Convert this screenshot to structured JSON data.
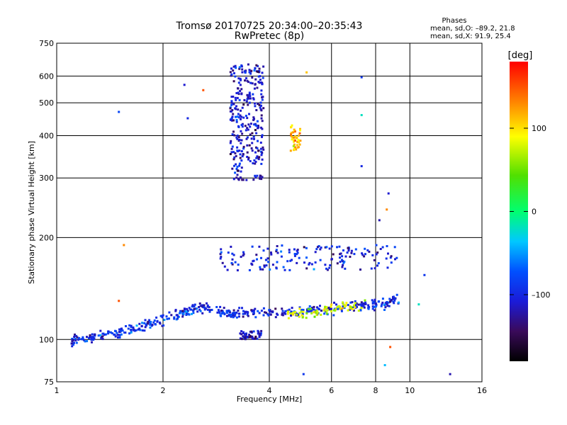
{
  "chart_data": {
    "type": "scatter",
    "title": "Tromsø 20170725 20:34:00–20:35:43",
    "subtitle": "RwPretec (8p)",
    "xlabel": "Frequency [MHz]",
    "ylabel": "Stationary phase Virtual Height [km]",
    "x_scale": "log",
    "y_scale": "log",
    "xlim": [
      1,
      16
    ],
    "ylim": [
      75,
      750
    ],
    "x_ticks": [
      1,
      2,
      4,
      6,
      8,
      10,
      16
    ],
    "x_tick_labels": [
      "1",
      "2",
      "4",
      "6",
      "8",
      "10",
      "16"
    ],
    "y_ticks": [
      75,
      100,
      200,
      300,
      400,
      500,
      600,
      750
    ],
    "y_tick_labels": [
      "75",
      "100",
      "200",
      "300",
      "400",
      "500",
      "600",
      "750"
    ],
    "grid": true,
    "stats": {
      "heading": "Phases",
      "line_o": "mean, sd,O: –89.2, 21.8",
      "line_x": "mean, sd,X:  91.9, 25.4"
    },
    "colorbar": {
      "label": "[deg]",
      "ticks": [
        100,
        0,
        -100
      ],
      "tick_labels": [
        "100",
        "0",
        "–100"
      ],
      "range": [
        -180,
        180
      ]
    },
    "groups": [
      {
        "name": "low-band trace",
        "x_range": [
          1.1,
          3.3
        ],
        "y_trend": [
          [
            1.1,
            99
          ],
          [
            1.5,
            105
          ],
          [
            2.0,
            115
          ],
          [
            2.6,
            125
          ],
          [
            3.2,
            118
          ]
        ],
        "phase": -95,
        "count": 260
      },
      {
        "name": "o-trace lower",
        "x_range": [
          3.0,
          9.3
        ],
        "y_trend": [
          [
            3.0,
            119
          ],
          [
            4.0,
            120
          ],
          [
            5.0,
            121
          ],
          [
            6.5,
            124
          ],
          [
            8.5,
            128
          ],
          [
            9.2,
            132
          ]
        ],
        "phase": -100,
        "count": 220
      },
      {
        "name": "x-trace lower",
        "x_range": [
          4.4,
          7.5
        ],
        "y_trend": [
          [
            4.5,
            118
          ],
          [
            5.5,
            121
          ],
          [
            6.5,
            124
          ],
          [
            7.4,
            127
          ]
        ],
        "phase": 80,
        "count": 70
      },
      {
        "name": "upper layer",
        "x_range": [
          2.9,
          9.2
        ],
        "y_range": [
          160,
          190
        ],
        "phase": -100,
        "count": 160
      },
      {
        "name": "spread-F column",
        "x_range": [
          3.1,
          3.85
        ],
        "y_range": [
          295,
          650
        ],
        "phase": -110,
        "count": 300
      },
      {
        "name": "yellow cluster",
        "x_range": [
          4.6,
          4.9
        ],
        "y_range": [
          360,
          430
        ],
        "phase": 110,
        "count": 40
      },
      {
        "name": "low echoes",
        "x_range": [
          3.3,
          3.8
        ],
        "y_range": [
          100,
          106
        ],
        "phase": -115,
        "count": 50
      }
    ],
    "isolated_points": [
      {
        "x": 1.5,
        "y": 470,
        "phase": -80
      },
      {
        "x": 2.3,
        "y": 565,
        "phase": -110
      },
      {
        "x": 2.6,
        "y": 545,
        "phase": 150
      },
      {
        "x": 2.35,
        "y": 450,
        "phase": -100
      },
      {
        "x": 1.55,
        "y": 190,
        "phase": 130
      },
      {
        "x": 1.5,
        "y": 130,
        "phase": 150
      },
      {
        "x": 5.1,
        "y": 615,
        "phase": 110
      },
      {
        "x": 7.3,
        "y": 595,
        "phase": -90
      },
      {
        "x": 7.3,
        "y": 460,
        "phase": -20
      },
      {
        "x": 7.3,
        "y": 325,
        "phase": -100
      },
      {
        "x": 8.7,
        "y": 270,
        "phase": -110
      },
      {
        "x": 8.6,
        "y": 242,
        "phase": 130
      },
      {
        "x": 8.2,
        "y": 225,
        "phase": -120
      },
      {
        "x": 10.6,
        "y": 127,
        "phase": -20
      },
      {
        "x": 11.0,
        "y": 155,
        "phase": -90
      },
      {
        "x": 13.0,
        "y": 79,
        "phase": -120
      },
      {
        "x": 5.0,
        "y": 79,
        "phase": -90
      },
      {
        "x": 8.5,
        "y": 84,
        "phase": -40
      },
      {
        "x": 8.8,
        "y": 95,
        "phase": 150
      }
    ]
  }
}
